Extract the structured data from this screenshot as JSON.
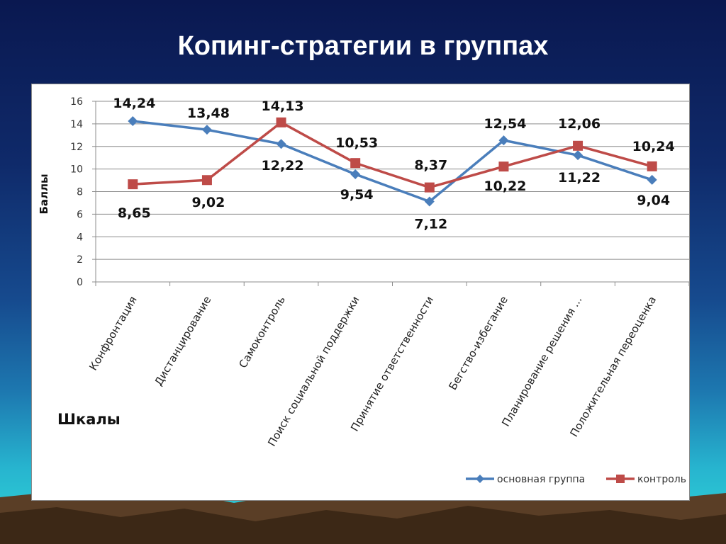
{
  "slide": {
    "title": "Копинг-стратегии в группах"
  },
  "colors": {
    "main": "#4a7ebb",
    "control": "#be4b48"
  },
  "chart_data": {
    "type": "line",
    "title": "",
    "xlabel": "Шкалы",
    "ylabel": "Баллы",
    "ylim": [
      0,
      16
    ],
    "yticks": [
      0,
      2,
      4,
      6,
      8,
      10,
      12,
      14,
      16
    ],
    "grid": true,
    "legend": "bottom-right",
    "categories": [
      "Конфронтация",
      "Дистанцирование",
      "Самоконтроль",
      "Поиск социальной поддержки",
      "Принятие ответственности",
      "Бегство-избегание",
      "Планирование решения ...",
      "Положительная переоценка"
    ],
    "series": [
      {
        "name": "основная группа",
        "marker": "diamond",
        "values": [
          14.24,
          13.48,
          12.22,
          9.54,
          7.12,
          12.54,
          11.22,
          9.04
        ],
        "labels": [
          "14,24",
          "13,48",
          "12,22",
          "9,54",
          "7,12",
          "12,54",
          "11,22",
          "9,04"
        ]
      },
      {
        "name": "контроль",
        "marker": "square",
        "values": [
          8.65,
          9.02,
          14.13,
          10.53,
          8.37,
          10.22,
          12.06,
          10.24
        ],
        "labels": [
          "8,65",
          "9,02",
          "14,13",
          "10,53",
          "8,37",
          "10,22",
          "12,06",
          "10,24"
        ]
      }
    ]
  }
}
